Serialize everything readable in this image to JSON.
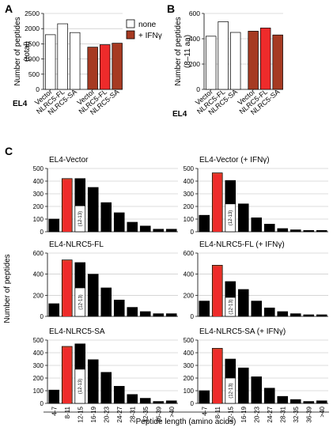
{
  "panels": {
    "A": {
      "letter": "A",
      "cell_line": "EL4"
    },
    "B": {
      "letter": "B",
      "cell_line": "EL4"
    },
    "C": {
      "letter": "C"
    }
  },
  "legend": {
    "none": "none",
    "ifn": "+ IFNγ"
  },
  "colors": {
    "none_fill": "#ffffff",
    "dark_red": "#a63a22",
    "red": "#ee2b2b",
    "black": "#000000",
    "grid": "#bdbdbd",
    "highlight_bar": "#d4452a"
  },
  "chart_data": [
    {
      "id": "A",
      "type": "bar",
      "ylabel": "Number of peptides (total)",
      "ylim": [
        0,
        2500
      ],
      "yticks": [
        0,
        500,
        1000,
        1500,
        2000,
        2500
      ],
      "grid": true,
      "categories": [
        "Vector",
        "NLRC5-FL",
        "NLRC5-SA",
        "Vector",
        "NLRC5-FL",
        "NLRC5-SA"
      ],
      "values": [
        1800,
        2160,
        1870,
        1390,
        1470,
        1520
      ],
      "conditions": [
        "none",
        "none",
        "none",
        "+ IFNγ",
        "+ IFNγ",
        "+ IFNγ"
      ],
      "bar_colors": [
        "#ffffff",
        "#ffffff",
        "#ffffff",
        "#a63a22",
        "#ee2b2b",
        "#a63a22"
      ]
    },
    {
      "id": "B",
      "type": "bar",
      "ylabel": "Number of peptides (8–11 aa)",
      "ylim": [
        0,
        600
      ],
      "yticks": [
        0,
        200,
        400,
        600
      ],
      "grid": true,
      "categories": [
        "Vector",
        "NLRC5-FL",
        "NLRC5-SA",
        "Vector",
        "NLRC5-FL",
        "NLRC5-SA"
      ],
      "values": [
        420,
        535,
        450,
        460,
        485,
        430
      ],
      "conditions": [
        "none",
        "none",
        "none",
        "+ IFNγ",
        "+ IFNγ",
        "+ IFNγ"
      ],
      "bar_colors": [
        "#ffffff",
        "#ffffff",
        "#ffffff",
        "#a63a22",
        "#ee2b2b",
        "#a63a22"
      ]
    }
  ],
  "histograms": {
    "ylabel": "Number of peptides",
    "xlabel": "Peptide length (amino acids)",
    "categories": [
      "4-7",
      "8-11",
      "12-15",
      "16-19",
      "20-23",
      "24-27",
      "28-31",
      "32-35",
      "36-39",
      ">40"
    ],
    "inset_label": "(12-13)",
    "highlight_index": 1,
    "split_index": 2,
    "grid": true,
    "panels": [
      {
        "title": "EL4-Vector",
        "ylim": [
          0,
          500
        ],
        "yticks": [
          0,
          100,
          200,
          300,
          400,
          500
        ],
        "values": [
          100,
          420,
          420,
          350,
          230,
          150,
          75,
          45,
          20,
          20
        ],
        "split_value": 205
      },
      {
        "title": "EL4-Vector (+ IFNγ)",
        "ylim": [
          0,
          500
        ],
        "yticks": [
          0,
          100,
          200,
          300,
          400,
          500
        ],
        "values": [
          130,
          465,
          405,
          220,
          110,
          60,
          25,
          15,
          10,
          10
        ],
        "split_value": 220
      },
      {
        "title": "EL4-NLRC5-FL",
        "ylim": [
          0,
          600
        ],
        "yticks": [
          0,
          200,
          400,
          600
        ],
        "values": [
          120,
          535,
          510,
          400,
          270,
          155,
          85,
          45,
          25,
          25
        ],
        "split_value": 270
      },
      {
        "title": "EL4-NLRC5-FL (+ IFNγ)",
        "ylim": [
          0,
          600
        ],
        "yticks": [
          0,
          200,
          400,
          600
        ],
        "values": [
          145,
          485,
          330,
          255,
          145,
          80,
          45,
          25,
          15,
          15
        ],
        "split_value": 180
      },
      {
        "title": "EL4-NLRC5-SA",
        "ylim": [
          0,
          500
        ],
        "yticks": [
          0,
          100,
          200,
          300,
          400,
          500
        ],
        "values": [
          105,
          450,
          470,
          345,
          245,
          135,
          70,
          40,
          15,
          20
        ],
        "split_value": 270
      },
      {
        "title": "EL4-NLRC5-SA (+ IFNγ)",
        "ylim": [
          0,
          500
        ],
        "yticks": [
          0,
          100,
          200,
          300,
          400,
          500
        ],
        "values": [
          100,
          435,
          350,
          280,
          210,
          120,
          55,
          30,
          15,
          20
        ],
        "split_value": 200
      }
    ]
  }
}
